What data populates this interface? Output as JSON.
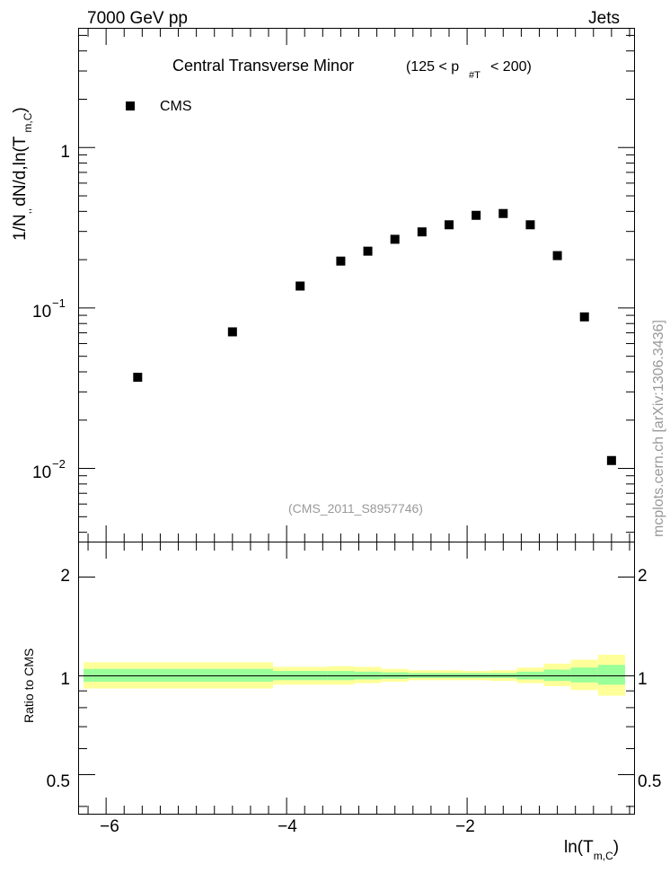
{
  "header": {
    "left": "7000 GeV pp",
    "right": "Jets"
  },
  "plot_title": {
    "main": "Central Transverse Minor",
    "cut_open": "(125 < p",
    "cut_sub": "#T",
    "cut_close": "< 200)"
  },
  "legend": {
    "label": "CMS"
  },
  "watermark": "(CMS_2011_S8957746)",
  "side_label": "mcplots.cern.ch [arXiv:1306.3436]",
  "y_axis_label": {
    "main": "1/N",
    "sub_a": ",,",
    "mid": "dN/d,ln(T",
    "sub_b": "m,C",
    "close": ")"
  },
  "ratio_axis_label": "Ratio to CMS",
  "x_axis_label": {
    "main": "ln(T",
    "sub": "m,C",
    "close": ")"
  },
  "main_y_ticks": [
    {
      "value": 0.01,
      "base": "10",
      "exp": "−2"
    },
    {
      "value": 0.1,
      "base": "10",
      "exp": "−1"
    },
    {
      "value": 1,
      "base": "1",
      "exp": ""
    }
  ],
  "ratio_ticks": [
    {
      "value": 0.5,
      "label": "0.5"
    },
    {
      "value": 1,
      "label": "1"
    },
    {
      "value": 2,
      "label": "2"
    }
  ],
  "x_ticks": [
    {
      "value": -6,
      "label": "−6"
    },
    {
      "value": -4,
      "label": "−4"
    },
    {
      "value": -2,
      "label": "−2"
    }
  ],
  "colors": {
    "marker": "#000000",
    "band_inner": "#99ff99",
    "band_outer": "#ffff99"
  },
  "chart_data": {
    "type": "scatter",
    "x_range": [
      -6.3,
      -0.15
    ],
    "y_range_log": [
      0.0035,
      5.5
    ],
    "y_log": true,
    "ratio_range_log": [
      0.38,
      2.55
    ],
    "series": [
      {
        "name": "CMS",
        "x": [
          -5.65,
          -4.6,
          -3.85,
          -3.4,
          -3.1,
          -2.8,
          -2.5,
          -2.2,
          -1.9,
          -1.6,
          -1.3,
          -1.0,
          -0.7,
          -0.4
        ],
        "y": [
          0.037,
          0.071,
          0.137,
          0.196,
          0.226,
          0.268,
          0.298,
          0.33,
          0.378,
          0.388,
          0.33,
          0.212,
          0.088,
          0.0112
        ]
      }
    ],
    "ratio_bands": [
      {
        "x0": -6.25,
        "x1": -4.15,
        "inner": [
          0.96,
          1.05
        ],
        "outer": [
          0.915,
          1.1
        ]
      },
      {
        "x0": -4.15,
        "x1": -3.55,
        "inner": [
          0.97,
          1.035
        ],
        "outer": [
          0.94,
          1.065
        ]
      },
      {
        "x0": -3.55,
        "x1": -3.25,
        "inner": [
          0.97,
          1.035
        ],
        "outer": [
          0.94,
          1.07
        ]
      },
      {
        "x0": -3.25,
        "x1": -2.95,
        "inner": [
          0.975,
          1.03
        ],
        "outer": [
          0.95,
          1.065
        ]
      },
      {
        "x0": -2.95,
        "x1": -2.65,
        "inner": [
          0.98,
          1.025
        ],
        "outer": [
          0.96,
          1.05
        ]
      },
      {
        "x0": -2.65,
        "x1": -2.35,
        "inner": [
          0.985,
          1.02
        ],
        "outer": [
          0.97,
          1.04
        ]
      },
      {
        "x0": -2.35,
        "x1": -2.05,
        "inner": [
          0.985,
          1.02
        ],
        "outer": [
          0.97,
          1.04
        ]
      },
      {
        "x0": -2.05,
        "x1": -1.75,
        "inner": [
          0.985,
          1.02
        ],
        "outer": [
          0.97,
          1.035
        ]
      },
      {
        "x0": -1.75,
        "x1": -1.45,
        "inner": [
          0.985,
          1.02
        ],
        "outer": [
          0.965,
          1.04
        ]
      },
      {
        "x0": -1.45,
        "x1": -1.15,
        "inner": [
          0.975,
          1.03
        ],
        "outer": [
          0.95,
          1.06
        ]
      },
      {
        "x0": -1.15,
        "x1": -0.85,
        "inner": [
          0.965,
          1.045
        ],
        "outer": [
          0.93,
          1.09
        ]
      },
      {
        "x0": -0.85,
        "x1": -0.55,
        "inner": [
          0.955,
          1.06
        ],
        "outer": [
          0.905,
          1.12
        ]
      },
      {
        "x0": -0.55,
        "x1": -0.25,
        "inner": [
          0.94,
          1.08
        ],
        "outer": [
          0.87,
          1.16
        ]
      }
    ]
  }
}
